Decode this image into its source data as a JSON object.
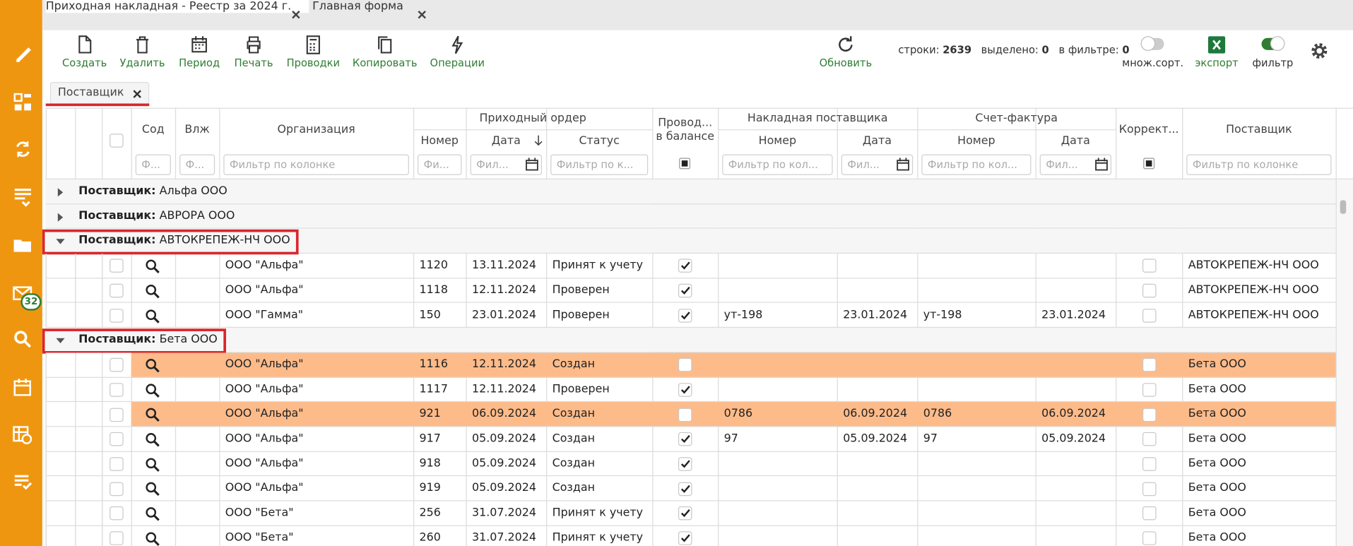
{
  "tabs": [
    {
      "title": "Приходная накладная - Реестр за 2024 г.",
      "active": true
    },
    {
      "title": "Главная форма",
      "active": false
    }
  ],
  "sidebar": {
    "badge": "32"
  },
  "toolbar": {
    "buttons": [
      "Создать",
      "Удалить",
      "Период",
      "Печать",
      "Проводки",
      "Копировать",
      "Операции"
    ],
    "refresh": "Обновить",
    "stats": [
      {
        "label": "строки:",
        "value": "2639"
      },
      {
        "label": "выделено:",
        "value": "0"
      },
      {
        "label": "в фильтре:",
        "value": "0"
      }
    ],
    "multi_sort": {
      "label": "множ.сорт.",
      "on": false
    },
    "export": "экспорт",
    "filter": {
      "label": "фильтр",
      "on": true
    }
  },
  "grouping": {
    "chip": "Поставщик"
  },
  "table": {
    "super_headers": [
      {
        "title": "Приходный ордер",
        "first": 3,
        "last": 5
      },
      {
        "title": "Накладная поставщика",
        "first": 7,
        "last": 8
      },
      {
        "title": "Счет-фактура",
        "first": 9,
        "last": 10
      }
    ],
    "columns": [
      {
        "title": "Сод",
        "filter": "Ф..."
      },
      {
        "title": "Влж",
        "filter": "Ф..."
      },
      {
        "title": "Организация",
        "filter": "Фильтр по колонке"
      },
      {
        "title": "Номер",
        "filter": "Фи..."
      },
      {
        "title": "Дата",
        "filter": "Фил..."
      },
      {
        "title": "Статус",
        "filter": "Фильтр по к..."
      },
      {
        "title": "Провод...\nв балансе"
      },
      {
        "title": "Номер",
        "filter": "Фильтр по кол..."
      },
      {
        "title": "Дата",
        "filter": "Фил..."
      },
      {
        "title": "Номер",
        "filter": "Фильтр по кол..."
      },
      {
        "title": "Дата",
        "filter": "Фил..."
      },
      {
        "title": "Коррект..."
      },
      {
        "title": "Поставщик",
        "filter": "Фильтр по колонке"
      }
    ],
    "group_prefix": "Поставщик:",
    "groups": [
      {
        "name": "Альфа ООО",
        "expanded": false
      },
      {
        "name": "АВРОРА ООО",
        "expanded": false
      },
      {
        "name": "АВТОКРЕПЕЖ-НЧ ООО",
        "expanded": true,
        "marked": true,
        "rows": [
          {
            "org": "ООО \"Альфа\"",
            "number": "1120",
            "date": "13.11.2024",
            "status": "Принят к учету",
            "posted": true,
            "corrected": false,
            "supplier": "АВТОКРЕПЕЖ-НЧ ООО"
          },
          {
            "org": "ООО \"Альфа\"",
            "number": "1118",
            "date": "12.11.2024",
            "status": "Проверен",
            "posted": true,
            "corrected": false,
            "supplier": "АВТОКРЕПЕЖ-НЧ ООО"
          },
          {
            "org": "ООО \"Гамма\"",
            "number": "150",
            "date": "23.01.2024",
            "status": "Проверен",
            "posted": true,
            "inv_number": "ут-198",
            "inv_date": "23.01.2024",
            "sf_number": "ут-198",
            "sf_date": "23.01.2024",
            "corrected": false,
            "supplier": "АВТОКРЕПЕЖ-НЧ ООО"
          }
        ]
      },
      {
        "name": "Бета ООО",
        "expanded": true,
        "marked": true,
        "rows": [
          {
            "org": "ООО \"Альфа\"",
            "number": "1116",
            "date": "12.11.2024",
            "status": "Создан",
            "posted": false,
            "corrected": false,
            "supplier": "Бета ООО",
            "highlight": true
          },
          {
            "org": "ООО \"Альфа\"",
            "number": "1117",
            "date": "12.11.2024",
            "status": "Проверен",
            "posted": true,
            "corrected": false,
            "supplier": "Бета ООО"
          },
          {
            "org": "ООО \"Альфа\"",
            "number": "921",
            "date": "06.09.2024",
            "status": "Создан",
            "posted": false,
            "inv_number": "0786",
            "inv_date": "06.09.2024",
            "sf_number": "0786",
            "sf_date": "06.09.2024",
            "corrected": false,
            "supplier": "Бета ООО",
            "highlight": true
          },
          {
            "org": "ООО \"Альфа\"",
            "number": "917",
            "date": "05.09.2024",
            "status": "Создан",
            "posted": true,
            "inv_number": "97",
            "inv_date": "05.09.2024",
            "sf_number": "97",
            "sf_date": "05.09.2024",
            "corrected": false,
            "supplier": "Бета ООО"
          },
          {
            "org": "ООО \"Альфа\"",
            "number": "918",
            "date": "05.09.2024",
            "status": "Создан",
            "posted": true,
            "corrected": false,
            "supplier": "Бета ООО"
          },
          {
            "org": "ООО \"Альфа\"",
            "number": "919",
            "date": "05.09.2024",
            "status": "Создан",
            "posted": true,
            "corrected": false,
            "supplier": "Бета ООО"
          },
          {
            "org": "ООО \"Бета\"",
            "number": "256",
            "date": "31.07.2024",
            "status": "Принят к учету",
            "posted": true,
            "corrected": false,
            "supplier": "Бета ООО"
          },
          {
            "org": "ООО \"Бета\"",
            "number": "260",
            "date": "31.07.2024",
            "status": "Принят к учету",
            "posted": true,
            "corrected": false,
            "supplier": "Бета ООО"
          }
        ]
      }
    ]
  }
}
